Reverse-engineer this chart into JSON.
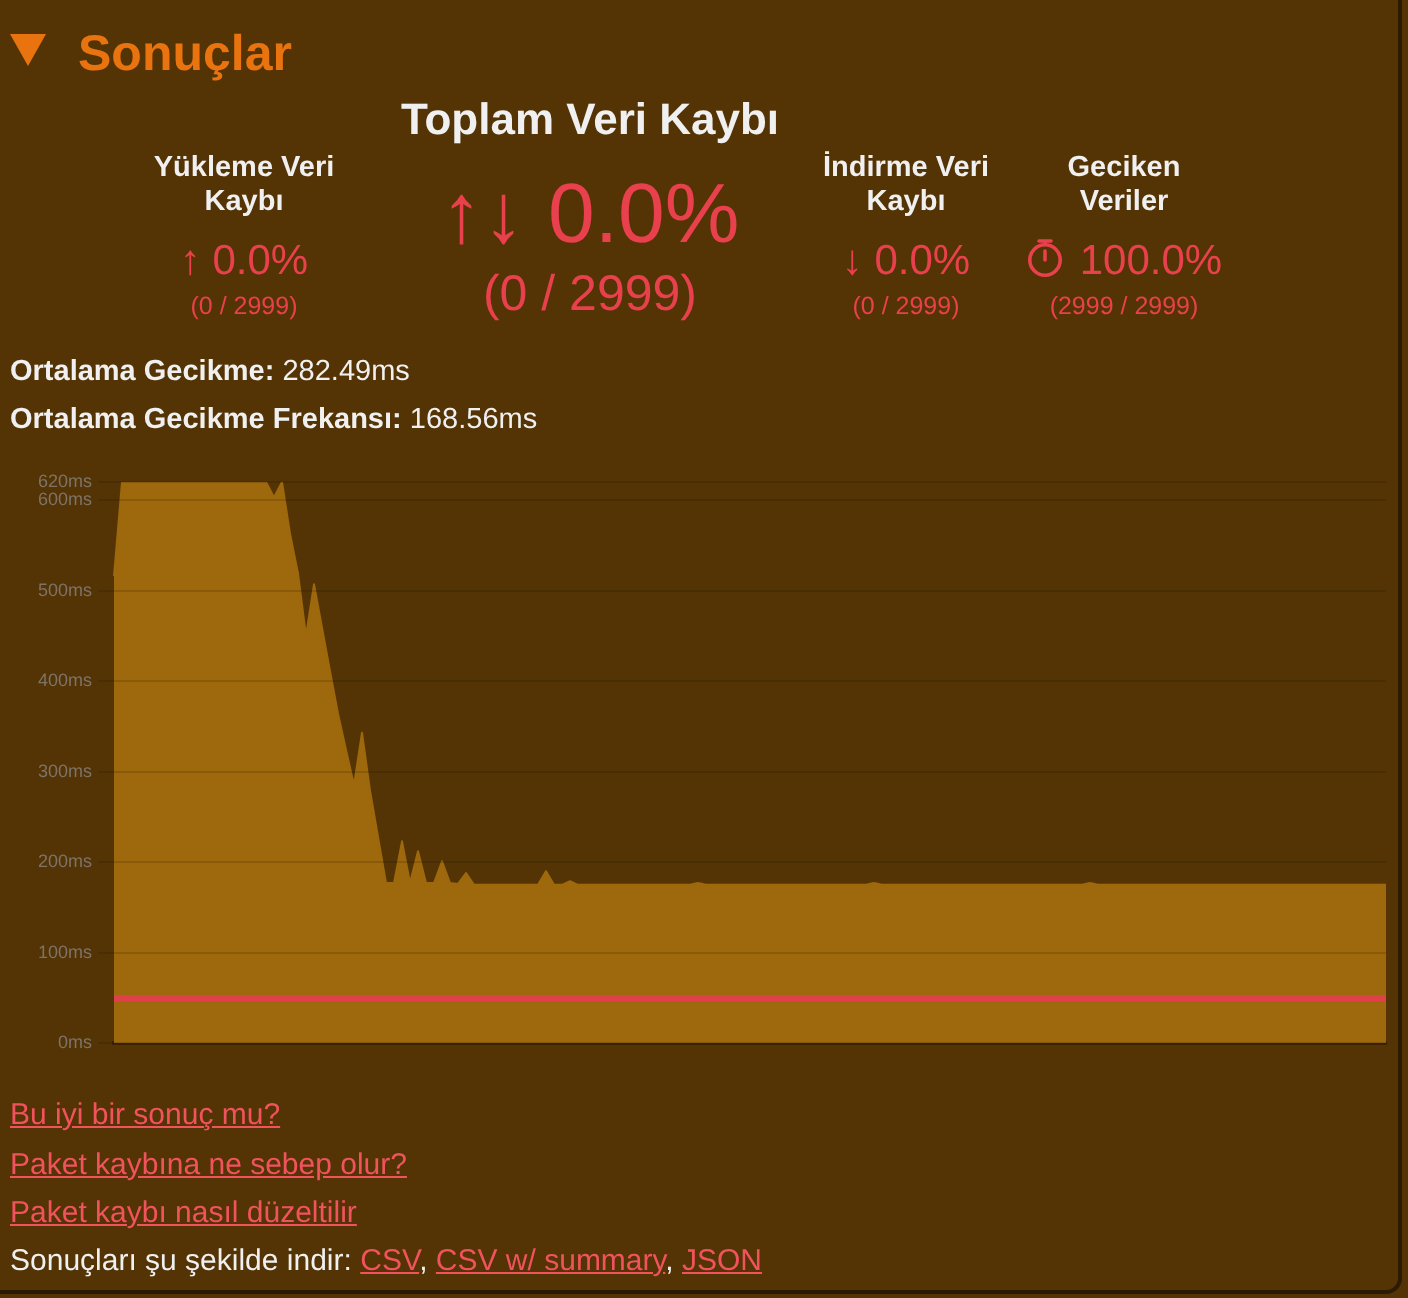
{
  "chart_data": {
    "type": "area",
    "title": "Sonuçlar",
    "annotations": [
      "Toplam Veri Kaybı",
      "↑↓ 0.0%",
      "(0 / 2999)",
      "Yükleme Veri Kaybı",
      "↑ 0.0%",
      "(0 / 2999)",
      "İndirme Veri Kaybı",
      "↓ 0.0%",
      "(0 / 2999)",
      "Geciken Veriler",
      "100.0%",
      "(2999 / 2999)",
      "Ortalama Gecikme: 282.49ms",
      "Ortalama Gecikme Frekansı: 168.56ms",
      "Bu iyi bir sonuç mu?",
      "Paket kaybına ne sebep olur?",
      "Paket kaybı nasıl düzeltilir",
      "Sonuçları şu şekilde indir: CSV, CSV w/ summary, JSON"
    ],
    "categories": [
      null,
      null,
      null,
      null,
      null,
      null,
      null,
      null,
      null,
      null,
      null,
      null,
      null,
      null,
      null,
      null,
      null,
      null,
      null,
      null,
      null,
      null,
      null,
      null,
      null,
      null,
      null,
      null,
      null,
      null,
      null,
      null,
      null,
      null,
      null,
      null,
      null,
      null,
      null,
      null,
      null,
      null,
      null,
      null,
      null,
      null,
      null,
      null,
      null,
      null,
      null,
      null,
      null,
      null,
      null,
      null,
      null,
      null,
      null,
      null,
      null,
      null,
      null,
      null,
      null,
      null,
      null,
      null,
      null,
      null,
      null,
      null,
      null,
      null,
      null,
      null,
      null,
      null,
      null,
      null,
      null,
      null,
      null,
      null,
      null,
      null,
      null,
      null,
      null,
      null,
      null,
      null,
      null,
      null,
      null,
      null,
      null,
      null,
      null,
      null,
      null,
      null,
      null,
      null,
      null,
      null,
      null,
      null,
      null,
      null,
      null,
      null,
      null,
      null,
      null,
      null,
      null,
      null,
      null,
      null,
      null,
      null,
      null,
      null,
      null,
      null,
      null,
      null,
      null,
      null,
      null,
      null,
      null,
      null,
      null,
      null,
      null,
      null,
      null,
      null,
      null,
      null,
      null,
      null,
      null,
      null,
      null,
      null,
      null,
      null,
      null,
      null,
      null,
      null,
      null,
      null,
      null,
      null,
      null,
      null
    ],
    "values": [
      516,
      620,
      620,
      620,
      620,
      620,
      620,
      620,
      620,
      620,
      620,
      620,
      620,
      620,
      620,
      620,
      620,
      620,
      620,
      620,
      603,
      620,
      563,
      519,
      450,
      507,
      459,
      411,
      364,
      324,
      285,
      343,
      279,
      228,
      177,
      177,
      223,
      177,
      212,
      177,
      177,
      201,
      177,
      176,
      188,
      175,
      175,
      175,
      175,
      175,
      175,
      175,
      175,
      175,
      190,
      175,
      175,
      179,
      175,
      175,
      175,
      175,
      175,
      175,
      175,
      175,
      175,
      175,
      175,
      175,
      175,
      175,
      175,
      177,
      175,
      175,
      175,
      175,
      175,
      175,
      175,
      175,
      175,
      175,
      175,
      175,
      175,
      175,
      175,
      175,
      175,
      175,
      175,
      175,
      175,
      177,
      175,
      175,
      175,
      175,
      175,
      175,
      175,
      175,
      175,
      175,
      175,
      175,
      175,
      175,
      175,
      175,
      175,
      175,
      175,
      175,
      175,
      175,
      175,
      175,
      175,
      175,
      177,
      175,
      175,
      175,
      175,
      175,
      175,
      175,
      175,
      175,
      175,
      175,
      175,
      175,
      175,
      175,
      175,
      175,
      175,
      175,
      175,
      175,
      175,
      175,
      175,
      175,
      175,
      175,
      175,
      175,
      175,
      175,
      175,
      175,
      175,
      175,
      175,
      175
    ],
    "color": "#9e680c",
    "ylim": [
      0,
      620
    ],
    "yticks": [
      {
        "value": 0,
        "label": "0ms"
      },
      {
        "value": 100,
        "label": "100ms"
      },
      {
        "value": 200,
        "label": "200ms"
      },
      {
        "value": 300,
        "label": "300ms"
      },
      {
        "value": 400,
        "label": "400ms"
      },
      {
        "value": 500,
        "label": "500ms"
      },
      {
        "value": 600,
        "label": "600ms"
      },
      {
        "value": 620,
        "label": "620ms"
      }
    ],
    "grid": "y",
    "tick_labels": "y",
    "ref_lines": [
      {
        "axis": "y",
        "value": 50,
        "color": "#e0404a"
      }
    ]
  }
}
